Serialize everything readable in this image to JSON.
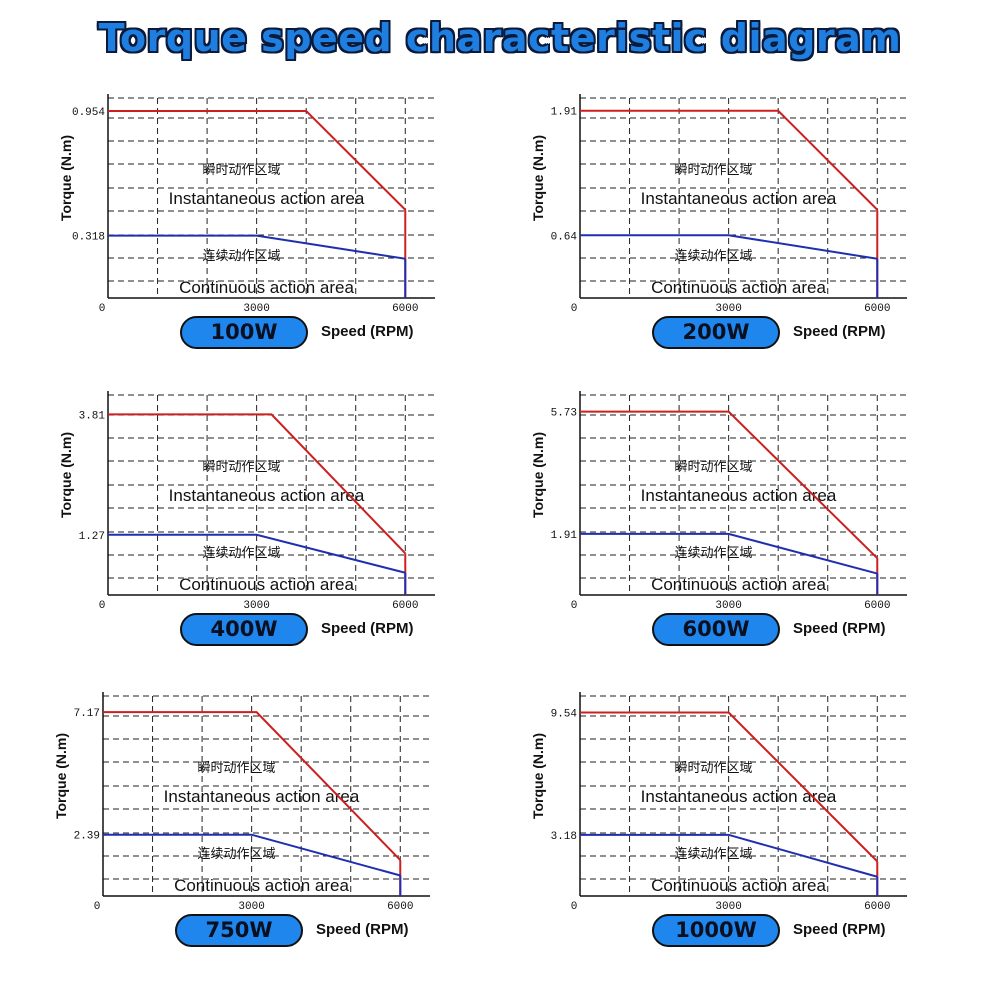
{
  "title": "Torque speed characteristic diagram",
  "chart_data": [
    {
      "type": "line",
      "badge": "100W",
      "ylabel": "Torque (N.m)",
      "xlabel": "Speed (RPM)",
      "x_ticks": [
        0,
        3000,
        6000
      ],
      "y_ticks": [
        0.954,
        0.318
      ],
      "y_tick_labels": [
        "0.954",
        "0.318"
      ],
      "instantaneous_cn": "瞬时动作区域",
      "instantaneous_en": "Instantaneous action area",
      "continuous_cn": "连续动作区域",
      "continuous_en": "Continuous action area",
      "series": [
        {
          "color": "#cc1f1f",
          "x": [
            0,
            4000,
            6000
          ],
          "y": [
            0.954,
            0.954,
            0.45
          ]
        },
        {
          "color": "#1f2fb0",
          "x": [
            0,
            3000,
            6000
          ],
          "y": [
            0.318,
            0.318,
            0.2
          ]
        }
      ],
      "xlim": [
        0,
        6600
      ],
      "ylim": [
        0,
        1.02
      ]
    },
    {
      "type": "line",
      "badge": "200W",
      "ylabel": "Torque (N.m)",
      "xlabel": "Speed (RPM)",
      "x_ticks": [
        0,
        3000,
        6000
      ],
      "y_ticks": [
        1.91,
        0.64
      ],
      "y_tick_labels": [
        "1.91",
        "0.64"
      ],
      "instantaneous_cn": "瞬时动作区域",
      "instantaneous_en": "Instantaneous action area",
      "continuous_cn": "连续动作区域",
      "continuous_en": "Continuous action area",
      "series": [
        {
          "color": "#cc1f1f",
          "x": [
            0,
            4000,
            6000
          ],
          "y": [
            1.91,
            1.91,
            0.9
          ]
        },
        {
          "color": "#1f2fb0",
          "x": [
            0,
            3000,
            6000
          ],
          "y": [
            0.64,
            0.64,
            0.4
          ]
        }
      ],
      "xlim": [
        0,
        6600
      ],
      "ylim": [
        0,
        2.04
      ]
    },
    {
      "type": "line",
      "badge": "400W",
      "ylabel": "Torque (N.m)",
      "xlabel": "Speed (RPM)",
      "x_ticks": [
        0,
        3000,
        6000
      ],
      "y_ticks": [
        3.81,
        1.27
      ],
      "y_tick_labels": [
        "3.81",
        "1.27"
      ],
      "instantaneous_cn": "瞬时动作区域",
      "instantaneous_en": "Instantaneous action area",
      "continuous_cn": "连续动作区域",
      "continuous_en": "Continuous action area",
      "series": [
        {
          "color": "#cc1f1f",
          "x": [
            0,
            3300,
            6000
          ],
          "y": [
            3.81,
            3.81,
            0.88
          ]
        },
        {
          "color": "#1f2fb0",
          "x": [
            0,
            3000,
            6000
          ],
          "y": [
            1.27,
            1.27,
            0.47
          ]
        }
      ],
      "xlim": [
        0,
        6600
      ],
      "ylim": [
        0,
        4.22
      ]
    },
    {
      "type": "line",
      "badge": "600W",
      "ylabel": "Torque (N.m)",
      "xlabel": "Speed (RPM)",
      "x_ticks": [
        0,
        3000,
        6000
      ],
      "y_ticks": [
        5.73,
        1.91
      ],
      "y_tick_labels": [
        "5.73",
        "1.91"
      ],
      "instantaneous_cn": "瞬时动作区域",
      "instantaneous_en": "Instantaneous action area",
      "continuous_cn": "连续动作区域",
      "continuous_en": "Continuous action area",
      "series": [
        {
          "color": "#cc1f1f",
          "x": [
            0,
            3000,
            6000
          ],
          "y": [
            5.73,
            5.73,
            1.15
          ]
        },
        {
          "color": "#1f2fb0",
          "x": [
            0,
            3000,
            6000
          ],
          "y": [
            1.91,
            1.91,
            0.67
          ]
        }
      ],
      "xlim": [
        0,
        6600
      ],
      "ylim": [
        0,
        6.25
      ]
    },
    {
      "type": "line",
      "badge": "750W",
      "ylabel": "Torque (N.m)",
      "xlabel": "Speed (RPM)",
      "x_ticks": [
        0,
        3000,
        6000
      ],
      "y_ticks": [
        7.17,
        2.39
      ],
      "y_tick_labels": [
        "7.17",
        "2.39"
      ],
      "instantaneous_cn": "瞬时动作区域",
      "instantaneous_en": "Instantaneous action area",
      "continuous_cn": "连续动作区域",
      "continuous_en": "Continuous action area",
      "series": [
        {
          "color": "#cc1f1f",
          "x": [
            0,
            3100,
            6000
          ],
          "y": [
            7.17,
            7.17,
            1.4
          ]
        },
        {
          "color": "#1f2fb0",
          "x": [
            0,
            3000,
            6000
          ],
          "y": [
            2.39,
            2.39,
            0.8
          ]
        }
      ],
      "xlim": [
        0,
        6600
      ],
      "ylim": [
        0,
        7.8
      ]
    },
    {
      "type": "line",
      "badge": "1000W",
      "ylabel": "Torque (N.m)",
      "xlabel": "Speed (RPM)",
      "x_ticks": [
        0,
        3000,
        6000
      ],
      "y_ticks": [
        9.54,
        3.18
      ],
      "y_tick_labels": [
        "9.54",
        "3.18"
      ],
      "instantaneous_cn": "瞬时动作区域",
      "instantaneous_en": "Instantaneous action area",
      "continuous_cn": "连续动作区域",
      "continuous_en": "Continuous action area",
      "series": [
        {
          "color": "#cc1f1f",
          "x": [
            0,
            3000,
            6000
          ],
          "y": [
            9.54,
            9.54,
            1.8
          ]
        },
        {
          "color": "#1f2fb0",
          "x": [
            0,
            3000,
            6000
          ],
          "y": [
            3.18,
            3.18,
            1.0
          ]
        }
      ],
      "xlim": [
        0,
        6600
      ],
      "ylim": [
        0,
        10.4
      ]
    }
  ]
}
